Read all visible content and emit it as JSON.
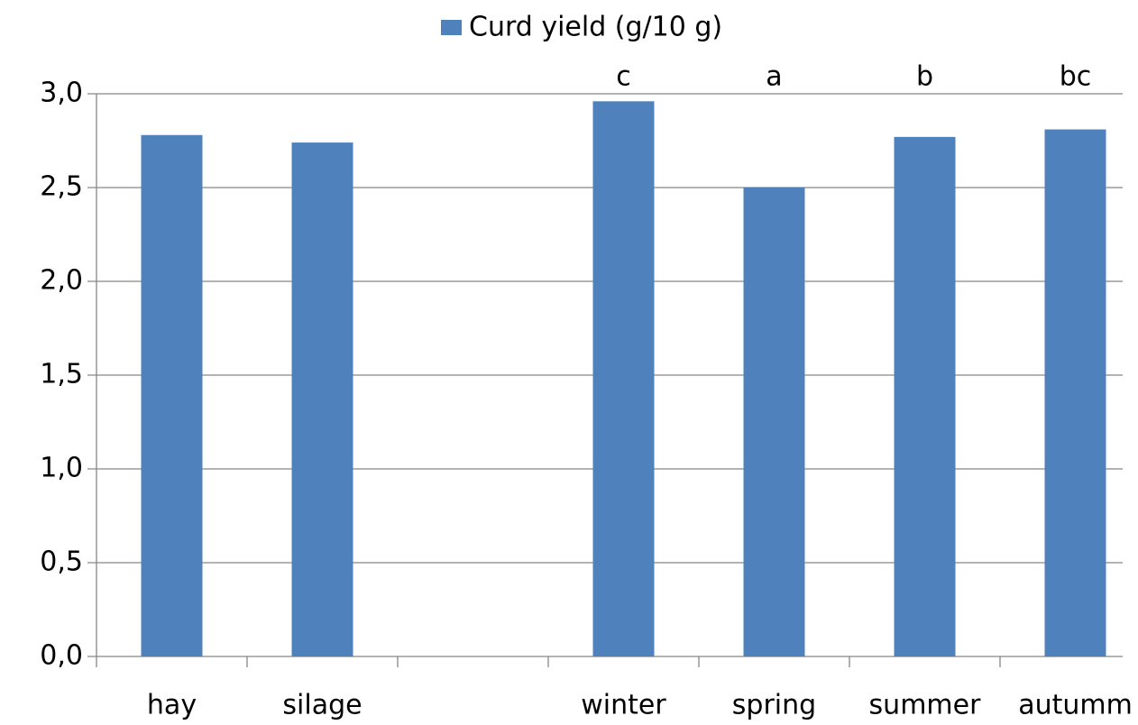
{
  "chart_data": {
    "type": "bar",
    "categories": [
      "hay",
      "silage",
      null,
      "winter",
      "spring",
      "summer",
      "autumm"
    ],
    "series": [
      {
        "name": "Curd yield (g/10 g)",
        "color": "#4f81bd",
        "values": [
          2.78,
          2.74,
          null,
          2.96,
          2.5,
          2.77,
          2.81
        ]
      }
    ],
    "bar_labels": [
      null,
      null,
      null,
      "c",
      "a",
      "b",
      "bc"
    ],
    "ylim": [
      0,
      3
    ],
    "yticks": [
      {
        "value": 0,
        "label": "0,0"
      },
      {
        "value": 0.5,
        "label": "0,5"
      },
      {
        "value": 1,
        "label": "1,0"
      },
      {
        "value": 1.5,
        "label": "1,5"
      },
      {
        "value": 2,
        "label": "2,0"
      },
      {
        "value": 2.5,
        "label": "2,5"
      },
      {
        "value": 3,
        "label": "3,0"
      }
    ],
    "grid": true,
    "legend": "top"
  }
}
